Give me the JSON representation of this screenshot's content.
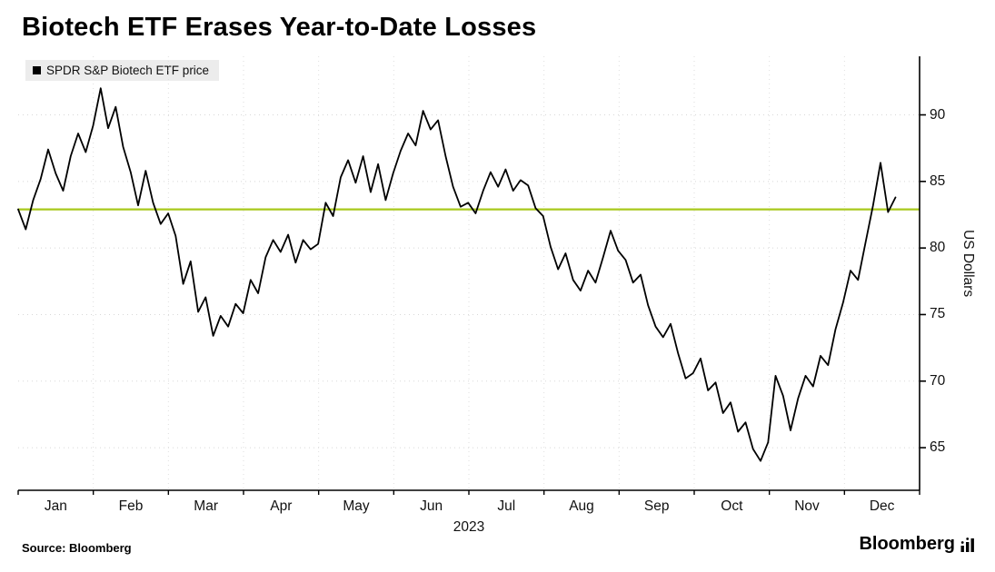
{
  "header": {
    "title": "Biotech ETF Erases Year-to-Date Losses"
  },
  "legend": {
    "label": "SPDR S&P Biotech ETF price",
    "marker_color": "#000000"
  },
  "footer": {
    "source": "Source: Bloomberg",
    "brand": "Bloomberg"
  },
  "chart_data": {
    "type": "line",
    "title": "Biotech ETF Erases Year-to-Date Losses",
    "x_axis_title": "2023",
    "x_tick_labels": [
      "Jan",
      "Feb",
      "Mar",
      "Apr",
      "May",
      "Jun",
      "Jul",
      "Aug",
      "Sep",
      "Oct",
      "Nov",
      "Dec"
    ],
    "y_ticks": [
      65,
      70,
      75,
      80,
      85,
      90
    ],
    "ylabel": "US Dollars",
    "ylim": [
      61.8,
      94.4
    ],
    "grid": "dotted",
    "legend_position": "top-left",
    "baseline": {
      "value": 82.9,
      "color": "#a8c91c"
    },
    "series": [
      {
        "name": "SPDR S&P Biotech ETF price",
        "color": "#000000",
        "values": [
          82.9,
          81.4,
          83.6,
          85.2,
          87.4,
          85.6,
          84.3,
          86.9,
          88.6,
          87.2,
          89.2,
          92.0,
          89.0,
          90.6,
          87.6,
          85.7,
          83.2,
          85.8,
          83.4,
          81.8,
          82.6,
          80.9,
          77.3,
          79.0,
          75.2,
          76.3,
          73.4,
          74.9,
          74.1,
          75.8,
          75.1,
          77.6,
          76.6,
          79.3,
          80.6,
          79.7,
          81.0,
          78.9,
          80.6,
          79.9,
          80.3,
          83.4,
          82.4,
          85.3,
          86.6,
          84.9,
          86.9,
          84.2,
          86.3,
          83.6,
          85.6,
          87.3,
          88.6,
          87.7,
          90.3,
          88.9,
          89.6,
          86.9,
          84.6,
          83.1,
          83.4,
          82.6,
          84.3,
          85.7,
          84.6,
          85.9,
          84.3,
          85.1,
          84.7,
          83.0,
          82.4,
          80.1,
          78.4,
          79.6,
          77.6,
          76.8,
          78.3,
          77.4,
          79.3,
          81.3,
          79.8,
          79.1,
          77.4,
          78.0,
          75.7,
          74.1,
          73.3,
          74.3,
          72.1,
          70.2,
          70.6,
          71.7,
          69.3,
          69.9,
          67.6,
          68.4,
          66.2,
          66.9,
          64.9,
          64.0,
          65.4,
          70.4,
          68.9,
          66.3,
          68.7,
          70.4,
          69.6,
          71.9,
          71.2,
          73.9,
          75.9,
          78.3,
          77.6,
          80.4,
          83.2,
          86.4,
          82.7,
          83.8
        ]
      }
    ]
  }
}
